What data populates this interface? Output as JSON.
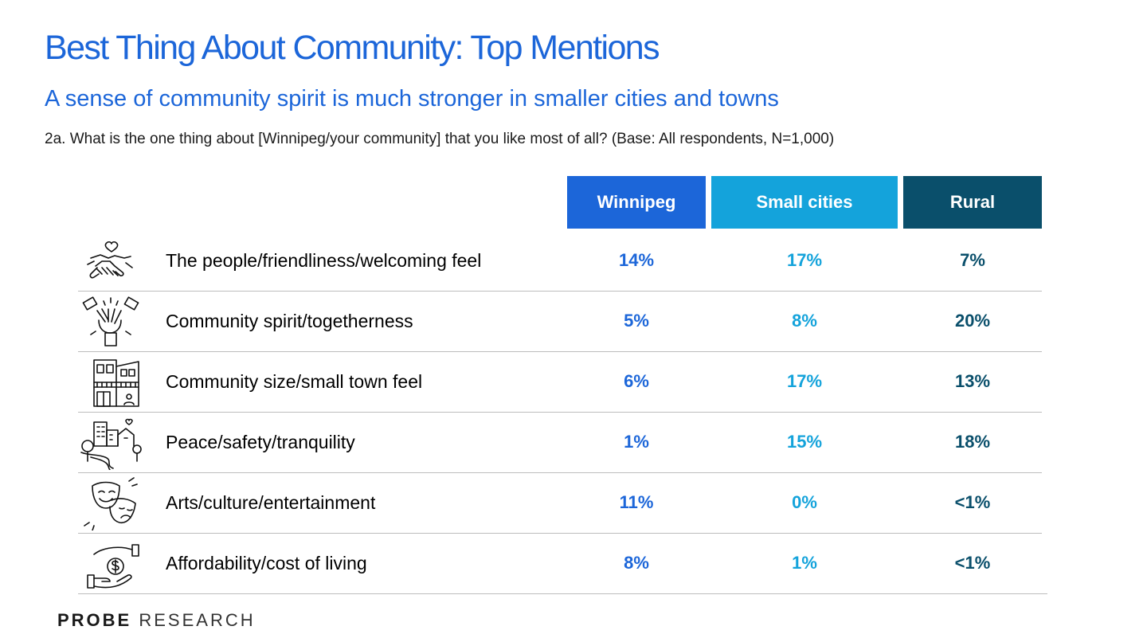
{
  "title": "Best Thing About Community: Top Mentions",
  "subtitle": "A sense of community spirit is much stronger in smaller cities and towns",
  "question": "2a. What is the one thing about [Winnipeg/your community] that you like most of all? (Base: All respondents, N=1,000)",
  "columns": [
    {
      "label": "Winnipeg",
      "color": "#1c66d9"
    },
    {
      "label": "Small cities",
      "color": "#14a3db"
    },
    {
      "label": "Rural",
      "color": "#0a4f6b"
    }
  ],
  "value_colors": [
    "#1c66d9",
    "#14a3db",
    "#0a4f6b"
  ],
  "rows": [
    {
      "icon": "handshake-heart-icon",
      "label": "The people/friendliness/welcoming feel",
      "values": [
        "14%",
        "17%",
        "7%"
      ]
    },
    {
      "icon": "raised-hands-icon",
      "label": "Community spirit/togetherness",
      "values": [
        "5%",
        "8%",
        "20%"
      ]
    },
    {
      "icon": "storefront-icon",
      "label": "Community size/small town feel",
      "values": [
        "6%",
        "17%",
        "13%"
      ]
    },
    {
      "icon": "town-landscape-icon",
      "label": "Peace/safety/tranquility",
      "values": [
        "1%",
        "15%",
        "18%"
      ]
    },
    {
      "icon": "theatre-masks-icon",
      "label": "Arts/culture/entertainment",
      "values": [
        "11%",
        "0%",
        "<1%"
      ]
    },
    {
      "icon": "hands-dollar-icon",
      "label": "Affordability/cost of living",
      "values": [
        "8%",
        "1%",
        "<1%"
      ]
    }
  ],
  "logo": {
    "bold": "PROBE",
    "light": "RESEARCH"
  }
}
